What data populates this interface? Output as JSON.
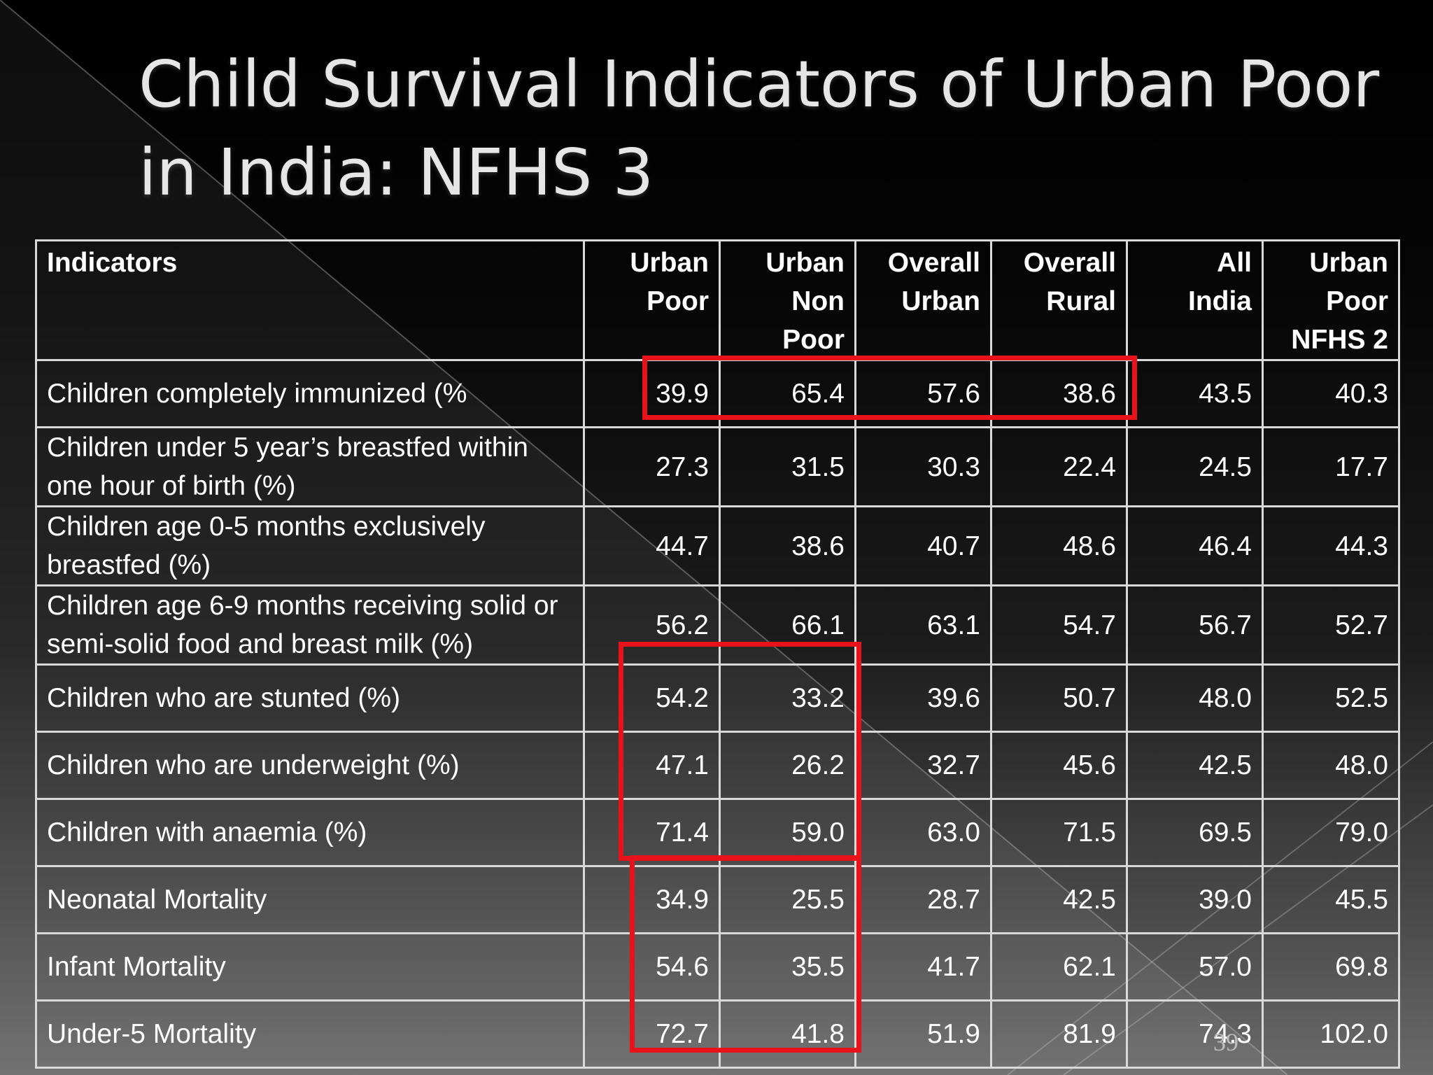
{
  "title": "Child Survival Indicators of Urban Poor in India: NFHS 3",
  "table": {
    "headers": [
      [
        "Indicators"
      ],
      [
        "Urban",
        "Poor"
      ],
      [
        "Urban",
        "Non",
        "Poor"
      ],
      [
        "Overall",
        "Urban"
      ],
      [
        "Overall",
        "Rural"
      ],
      [
        "All",
        "India"
      ],
      [
        "Urban",
        "Poor",
        "NFHS 2"
      ]
    ],
    "rows": [
      {
        "label": [
          "Children completely immunized (%"
        ],
        "values": [
          "39.9",
          "65.4",
          "57.6",
          "38.6",
          "43.5",
          "40.3"
        ]
      },
      {
        "label": [
          "Children under 5 year’s breastfed within",
          "one hour of birth (%)"
        ],
        "values": [
          "27.3",
          "31.5",
          "30.3",
          "22.4",
          "24.5",
          "17.7"
        ]
      },
      {
        "label": [
          "Children age 0-5 months exclusively",
          "breastfed (%)"
        ],
        "values": [
          "44.7",
          "38.6",
          "40.7",
          "48.6",
          "46.4",
          "44.3"
        ]
      },
      {
        "label": [
          "Children age 6-9 months receiving solid or",
          "semi-solid food and breast milk (%)"
        ],
        "values": [
          "56.2",
          "66.1",
          "63.1",
          "54.7",
          "56.7",
          "52.7"
        ]
      },
      {
        "label": [
          "Children who are stunted (%)"
        ],
        "values": [
          "54.2",
          "33.2",
          "39.6",
          "50.7",
          "48.0",
          "52.5"
        ]
      },
      {
        "label": [
          "Children who are underweight (%)"
        ],
        "values": [
          "47.1",
          "26.2",
          "32.7",
          "45.6",
          "42.5",
          "48.0"
        ]
      },
      {
        "label": [
          "Children with anaemia (%)"
        ],
        "values": [
          "71.4",
          "59.0",
          "63.0",
          "71.5",
          "69.5",
          "79.0"
        ]
      },
      {
        "label": [
          "Neonatal Mortality"
        ],
        "values": [
          "34.9",
          "25.5",
          "28.7",
          "42.5",
          "39.0",
          "45.5"
        ]
      },
      {
        "label": [
          "Infant Mortality"
        ],
        "values": [
          "54.6",
          "35.5",
          "41.7",
          "62.1",
          "57.0",
          "69.8"
        ]
      },
      {
        "label": [
          "Under-5 Mortality"
        ],
        "values": [
          "72.7",
          "41.8",
          "51.9",
          "81.9",
          "74.3",
          "102.0"
        ]
      }
    ]
  },
  "highlight_color": "#e8121b",
  "slide_number": "39"
}
